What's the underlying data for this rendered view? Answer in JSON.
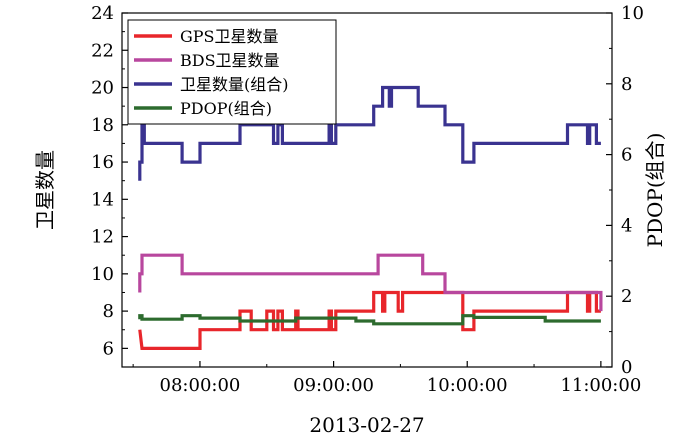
{
  "chart_data": {
    "type": "line",
    "step": true,
    "xlabel": "2013-02-27",
    "ylabel_left": "卫星数量",
    "ylabel_right": "PDOP(组合)",
    "x_domain": [
      "07:25:00",
      "11:05:00"
    ],
    "xticks": [
      "08:00:00",
      "09:00:00",
      "10:00:00",
      "11:00:00"
    ],
    "ylim_left": [
      5,
      24
    ],
    "yticks_left": [
      6,
      8,
      10,
      12,
      14,
      16,
      18,
      20,
      22,
      24
    ],
    "ylim_right": [
      0,
      10
    ],
    "yticks_right": [
      0,
      2,
      4,
      6,
      8,
      10
    ],
    "grid": false,
    "legend_placement": "top-left",
    "series": [
      {
        "name": "GPS卫星数量",
        "axis": "left",
        "color": "#e8262b",
        "points": [
          [
            "07:33",
            7
          ],
          [
            "07:34",
            6
          ],
          [
            "08:00",
            6
          ],
          [
            "08:00",
            7
          ],
          [
            "08:18",
            7
          ],
          [
            "08:18",
            8
          ],
          [
            "08:23",
            8
          ],
          [
            "08:23",
            7
          ],
          [
            "08:30",
            7
          ],
          [
            "08:30",
            8
          ],
          [
            "08:33",
            8
          ],
          [
            "08:33",
            7
          ],
          [
            "08:35",
            7
          ],
          [
            "08:35",
            8
          ],
          [
            "08:37",
            8
          ],
          [
            "08:37",
            7
          ],
          [
            "08:43",
            7
          ],
          [
            "08:43",
            8
          ],
          [
            "08:44",
            8
          ],
          [
            "08:44",
            7
          ],
          [
            "08:58",
            7
          ],
          [
            "08:58",
            8
          ],
          [
            "08:59",
            8
          ],
          [
            "08:59",
            7
          ],
          [
            "09:01",
            7
          ],
          [
            "09:01",
            8
          ],
          [
            "09:18",
            8
          ],
          [
            "09:18",
            9
          ],
          [
            "09:22",
            9
          ],
          [
            "09:22",
            8
          ],
          [
            "09:23",
            8
          ],
          [
            "09:23",
            9
          ],
          [
            "09:29",
            9
          ],
          [
            "09:29",
            8
          ],
          [
            "09:31",
            8
          ],
          [
            "09:31",
            9
          ],
          [
            "09:58",
            9
          ],
          [
            "09:58",
            7
          ],
          [
            "10:03",
            7
          ],
          [
            "10:03",
            8
          ],
          [
            "10:45",
            8
          ],
          [
            "10:45",
            9
          ],
          [
            "10:54",
            9
          ],
          [
            "10:54",
            8
          ],
          [
            "10:55",
            8
          ],
          [
            "10:55",
            9
          ],
          [
            "10:58",
            9
          ],
          [
            "10:58",
            8
          ],
          [
            "11:00",
            8
          ]
        ]
      },
      {
        "name": "BDS卫星数量",
        "axis": "left",
        "color": "#b8479e",
        "points": [
          [
            "07:33",
            9
          ],
          [
            "07:33",
            10
          ],
          [
            "07:34",
            10
          ],
          [
            "07:34",
            11
          ],
          [
            "07:52",
            11
          ],
          [
            "07:52",
            10
          ],
          [
            "09:20",
            10
          ],
          [
            "09:20",
            11
          ],
          [
            "09:40",
            11
          ],
          [
            "09:40",
            10
          ],
          [
            "09:50",
            10
          ],
          [
            "09:50",
            9
          ],
          [
            "11:00",
            9
          ],
          [
            "11:00",
            8
          ]
        ]
      },
      {
        "name": "卫星数量(组合)",
        "axis": "left",
        "color": "#3a3390",
        "points": [
          [
            "07:33",
            15
          ],
          [
            "07:33",
            16
          ],
          [
            "07:34",
            16
          ],
          [
            "07:34",
            18
          ],
          [
            "07:35",
            18
          ],
          [
            "07:35",
            17
          ],
          [
            "07:52",
            17
          ],
          [
            "07:52",
            16
          ],
          [
            "08:00",
            16
          ],
          [
            "08:00",
            17
          ],
          [
            "08:18",
            17
          ],
          [
            "08:18",
            18
          ],
          [
            "08:33",
            18
          ],
          [
            "08:33",
            17
          ],
          [
            "08:35",
            17
          ],
          [
            "08:35",
            18
          ],
          [
            "08:37",
            18
          ],
          [
            "08:37",
            17
          ],
          [
            "08:58",
            17
          ],
          [
            "08:58",
            18
          ],
          [
            "08:59",
            18
          ],
          [
            "08:59",
            17
          ],
          [
            "09:01",
            17
          ],
          [
            "09:01",
            18
          ],
          [
            "09:18",
            18
          ],
          [
            "09:18",
            19
          ],
          [
            "09:22",
            19
          ],
          [
            "09:22",
            20
          ],
          [
            "09:25",
            20
          ],
          [
            "09:25",
            19
          ],
          [
            "09:26",
            19
          ],
          [
            "09:26",
            20
          ],
          [
            "09:38",
            20
          ],
          [
            "09:38",
            19
          ],
          [
            "09:50",
            19
          ],
          [
            "09:50",
            18
          ],
          [
            "09:58",
            18
          ],
          [
            "09:58",
            16
          ],
          [
            "10:03",
            16
          ],
          [
            "10:03",
            17
          ],
          [
            "10:45",
            17
          ],
          [
            "10:45",
            18
          ],
          [
            "10:54",
            18
          ],
          [
            "10:54",
            17
          ],
          [
            "10:55",
            17
          ],
          [
            "10:55",
            18
          ],
          [
            "10:58",
            18
          ],
          [
            "10:58",
            17
          ],
          [
            "11:00",
            17
          ]
        ]
      },
      {
        "name": "PDOP(组合)",
        "axis": "right",
        "color": "#2d6b2e",
        "points": [
          [
            "07:33",
            1.35
          ],
          [
            "07:33",
            1.45
          ],
          [
            "07:34",
            1.45
          ],
          [
            "07:34",
            1.35
          ],
          [
            "07:52",
            1.35
          ],
          [
            "07:52",
            1.45
          ],
          [
            "08:00",
            1.45
          ],
          [
            "08:00",
            1.38
          ],
          [
            "08:18",
            1.38
          ],
          [
            "08:18",
            1.3
          ],
          [
            "08:43",
            1.3
          ],
          [
            "08:43",
            1.38
          ],
          [
            "09:10",
            1.38
          ],
          [
            "09:10",
            1.3
          ],
          [
            "09:18",
            1.3
          ],
          [
            "09:18",
            1.22
          ],
          [
            "09:58",
            1.22
          ],
          [
            "09:58",
            1.45
          ],
          [
            "10:03",
            1.45
          ],
          [
            "10:03",
            1.4
          ],
          [
            "10:35",
            1.4
          ],
          [
            "10:35",
            1.3
          ],
          [
            "11:00",
            1.3
          ]
        ]
      }
    ]
  }
}
